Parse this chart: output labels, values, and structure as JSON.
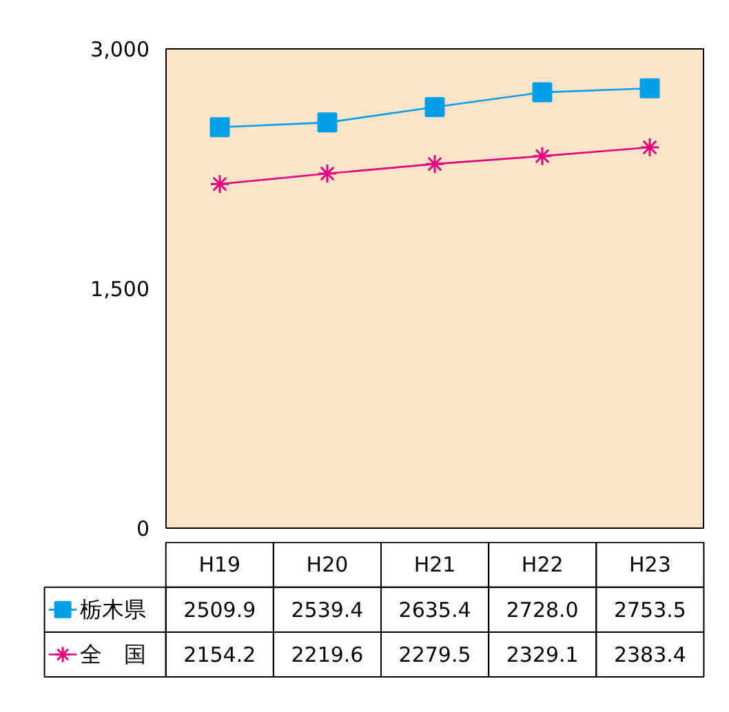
{
  "chart_data": {
    "type": "line",
    "categories": [
      "H19",
      "H20",
      "H21",
      "H22",
      "H23"
    ],
    "series": [
      {
        "name": "栃木県",
        "color": "#00a0e9",
        "marker": "square",
        "values": [
          2509.9,
          2539.4,
          2635.4,
          2728.0,
          2753.5
        ],
        "value_labels": [
          "2509.9",
          "2539.4",
          "2635.4",
          "2728.0",
          "2753.5"
        ]
      },
      {
        "name": "全　国",
        "color": "#e4007f",
        "marker": "cross",
        "values": [
          2154.2,
          2219.6,
          2279.5,
          2329.1,
          2383.4
        ]
      }
    ],
    "ylim": [
      0,
      3000
    ],
    "yticks": [
      0,
      {
        "value": 1500,
        "label": "1,500"
      },
      {
        "value": 3000,
        "label": "3,000"
      }
    ],
    "grid": false,
    "legend": "bottom",
    "data_labels": true
  }
}
